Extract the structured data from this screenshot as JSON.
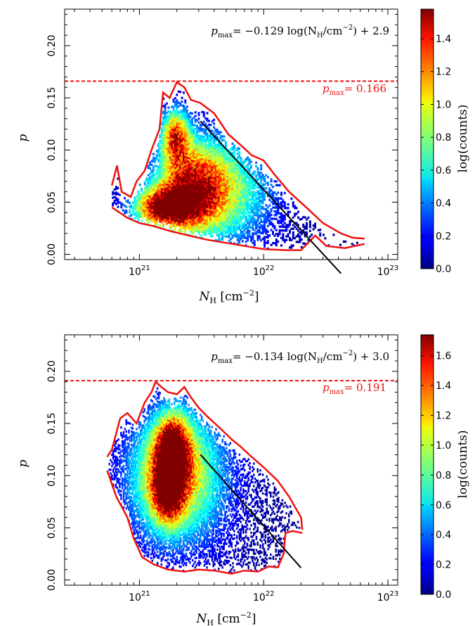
{
  "chart_data": [
    {
      "type": "heatmap",
      "panel": "top",
      "xlabel": "N_H [cm^-2]",
      "ylabel": "p",
      "xscale": "log",
      "xlim": [
        2.5e+20,
        1.2e+23
      ],
      "ylim": [
        -0.005,
        0.235
      ],
      "x_ticks": [
        {
          "value": 1e+21,
          "label": "10",
          "exp": "21"
        },
        {
          "value": 1e+22,
          "label": "10",
          "exp": "22"
        },
        {
          "value": 1e+23,
          "label": "10",
          "exp": "23"
        }
      ],
      "y_ticks": [
        "0.00",
        "0.05",
        "0.10",
        "0.15",
        "0.20"
      ],
      "y_tick_values": [
        0.0,
        0.05,
        0.1,
        0.15,
        0.2
      ],
      "colorbar": {
        "label": "log(counts)",
        "min": 0.0,
        "max": 1.58,
        "ticks": [
          "0.0",
          "0.2",
          "0.4",
          "0.6",
          "0.8",
          "1.0",
          "1.2",
          "1.4"
        ],
        "tick_values": [
          0.0,
          0.2,
          0.4,
          0.6,
          0.8,
          1.0,
          1.2,
          1.4
        ]
      },
      "fit": {
        "slope": -0.129,
        "intercept": 2.9,
        "x_range": [
          3.1e+21,
          4.2e+22
        ],
        "label_lhs": "p",
        "label_sub": "max",
        "label_text": "= −0.129 log(N",
        "label_sub2": "H",
        "label_unit": "/cm",
        "label_exp": "−2",
        "label_tail": ") + 2.9"
      },
      "pmax": {
        "value": 0.166,
        "label": "p",
        "label_sub": "max",
        "label_value": "= 0.166"
      },
      "envelope_upper": [
        [
          6e+20,
          0.066
        ],
        [
          6.6e+20,
          0.085
        ],
        [
          7.2e+20,
          0.06
        ],
        [
          8.5e+20,
          0.055
        ],
        [
          9.5e+20,
          0.07
        ],
        [
          1.1e+21,
          0.08
        ],
        [
          1.25e+21,
          0.1
        ],
        [
          1.45e+21,
          0.12
        ],
        [
          1.55e+21,
          0.155
        ],
        [
          1.75e+21,
          0.15
        ],
        [
          2e+21,
          0.165
        ],
        [
          2.3e+21,
          0.16
        ],
        [
          2.6e+21,
          0.148
        ],
        [
          3.1e+21,
          0.145
        ],
        [
          4e+21,
          0.135
        ],
        [
          5.2e+21,
          0.115
        ],
        [
          6.5e+21,
          0.105
        ],
        [
          8e+21,
          0.095
        ],
        [
          1e+22,
          0.09
        ],
        [
          1.25e+22,
          0.075
        ],
        [
          1.6e+22,
          0.06
        ],
        [
          2.2e+22,
          0.045
        ],
        [
          3e+22,
          0.03
        ],
        [
          4.2e+22,
          0.02
        ],
        [
          5.2e+22,
          0.016
        ],
        [
          6.5e+22,
          0.015
        ]
      ],
      "envelope_lower": [
        [
          6e+20,
          0.045
        ],
        [
          8e+20,
          0.035
        ],
        [
          1e+21,
          0.03
        ],
        [
          1.3e+21,
          0.027
        ],
        [
          1.8e+21,
          0.022
        ],
        [
          2.5e+21,
          0.018
        ],
        [
          3.5e+21,
          0.014
        ],
        [
          5e+21,
          0.011
        ],
        [
          7e+21,
          0.008
        ],
        [
          1e+22,
          0.005
        ],
        [
          1.5e+22,
          0.004
        ],
        [
          2e+22,
          0.004
        ],
        [
          2.6e+22,
          0.018
        ],
        [
          3.2e+22,
          0.008
        ],
        [
          4.5e+22,
          0.006
        ],
        [
          6.5e+22,
          0.01
        ]
      ],
      "density_peaks": [
        {
          "x": 1.55e+21,
          "y": 0.045,
          "sx": 0.17,
          "sy": 0.013,
          "amp": 1.55
        },
        {
          "x": 1.95e+21,
          "y": 0.115,
          "sx": 0.08,
          "sy": 0.018,
          "amp": 1.25
        },
        {
          "x": 2.6e+21,
          "y": 0.065,
          "sx": 0.2,
          "sy": 0.03,
          "amp": 1.2
        },
        {
          "x": 4.5e+21,
          "y": 0.06,
          "sx": 0.3,
          "sy": 0.035,
          "amp": 0.85
        }
      ]
    },
    {
      "type": "heatmap",
      "panel": "bottom",
      "xlabel": "N_H [cm^-2]",
      "ylabel": "p",
      "xscale": "log",
      "xlim": [
        2.5e+20,
        1.2e+23
      ],
      "ylim": [
        -0.005,
        0.235
      ],
      "x_ticks": [
        {
          "value": 1e+21,
          "label": "10",
          "exp": "21"
        },
        {
          "value": 1e+22,
          "label": "10",
          "exp": "22"
        },
        {
          "value": 1e+23,
          "label": "10",
          "exp": "23"
        }
      ],
      "y_ticks": [
        "0.00",
        "0.05",
        "0.10",
        "0.15",
        "0.20"
      ],
      "y_tick_values": [
        0.0,
        0.05,
        0.1,
        0.15,
        0.2
      ],
      "colorbar": {
        "label": "log(counts)",
        "min": 0.0,
        "max": 1.74,
        "ticks": [
          "0.0",
          "0.2",
          "0.4",
          "0.6",
          "0.8",
          "1.0",
          "1.2",
          "1.4",
          "1.6"
        ],
        "tick_values": [
          0.0,
          0.2,
          0.4,
          0.6,
          0.8,
          1.0,
          1.2,
          1.4,
          1.6
        ]
      },
      "fit": {
        "slope": -0.134,
        "intercept": 3.0,
        "x_range": [
          3.1e+21,
          2e+22
        ],
        "label_lhs": "p",
        "label_sub": "max",
        "label_text": "= −0.134 log(N",
        "label_sub2": "H",
        "label_unit": "/cm",
        "label_exp": "−2",
        "label_tail": ") + 3.0"
      },
      "pmax": {
        "value": 0.191,
        "label": "p",
        "label_sub": "max",
        "label_value": "= 0.191"
      },
      "envelope_upper": [
        [
          5.5e+20,
          0.118
        ],
        [
          6e+20,
          0.125
        ],
        [
          7e+20,
          0.155
        ],
        [
          8e+20,
          0.16
        ],
        [
          9.5e+20,
          0.15
        ],
        [
          1.1e+21,
          0.17
        ],
        [
          1.25e+21,
          0.18
        ],
        [
          1.35e+21,
          0.19
        ],
        [
          1.5e+21,
          0.185
        ],
        [
          1.7e+21,
          0.18
        ],
        [
          2e+21,
          0.178
        ],
        [
          2.3e+21,
          0.185
        ],
        [
          2.6e+21,
          0.175
        ],
        [
          3e+21,
          0.165
        ],
        [
          3.5e+21,
          0.157
        ],
        [
          4.5e+21,
          0.145
        ],
        [
          5.5e+21,
          0.135
        ],
        [
          6.5e+21,
          0.128
        ],
        [
          8e+21,
          0.118
        ],
        [
          1e+22,
          0.108
        ],
        [
          1.3e+22,
          0.095
        ],
        [
          1.6e+22,
          0.08
        ],
        [
          2e+22,
          0.06
        ],
        [
          2.05e+22,
          0.048
        ]
      ],
      "envelope_lower": [
        [
          5.5e+20,
          0.105
        ],
        [
          6.5e+20,
          0.08
        ],
        [
          8e+20,
          0.06
        ],
        [
          9e+20,
          0.04
        ],
        [
          1.05e+21,
          0.022
        ],
        [
          1.3e+21,
          0.015
        ],
        [
          1.7e+21,
          0.01
        ],
        [
          2.3e+21,
          0.008
        ],
        [
          3e+21,
          0.01
        ],
        [
          4e+21,
          0.009
        ],
        [
          5.5e+21,
          0.006
        ],
        [
          7e+21,
          0.009
        ],
        [
          9e+21,
          0.008
        ],
        [
          1.1e+22,
          0.013
        ],
        [
          1.3e+22,
          0.012
        ],
        [
          1.45e+22,
          0.025
        ],
        [
          1.5e+22,
          0.045
        ],
        [
          1.7e+22,
          0.047
        ],
        [
          2.05e+22,
          0.045
        ]
      ],
      "density_peaks": [
        {
          "x": 1.85e+21,
          "y": 0.125,
          "sx": 0.09,
          "sy": 0.022,
          "amp": 1.7
        },
        {
          "x": 1.7e+21,
          "y": 0.085,
          "sx": 0.08,
          "sy": 0.02,
          "amp": 1.35
        },
        {
          "x": 1.6e+21,
          "y": 0.1,
          "sx": 0.22,
          "sy": 0.04,
          "amp": 1.0
        },
        {
          "x": 2.6e+21,
          "y": 0.1,
          "sx": 0.25,
          "sy": 0.045,
          "amp": 0.7
        }
      ]
    }
  ]
}
